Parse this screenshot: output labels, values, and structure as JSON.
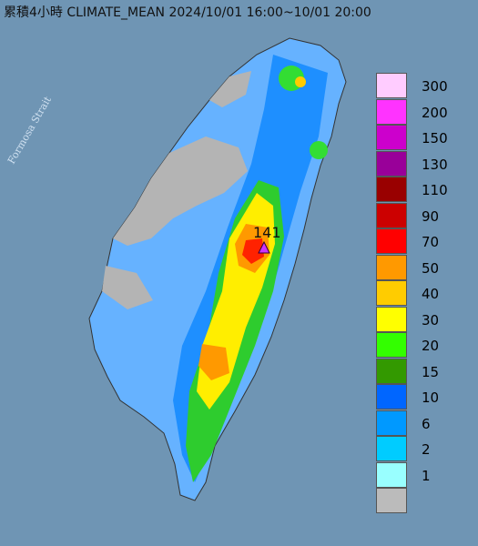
{
  "title": "累積4小時 CLIMATE_MEAN 2024/10/01 16:00~10/01 20:00",
  "strait_label": "Formosa Strait",
  "max_value": "141",
  "legend": [
    {
      "label": "300",
      "color": "#ffccff"
    },
    {
      "label": "200",
      "color": "#ff33ff"
    },
    {
      "label": "150",
      "color": "#cc00cc"
    },
    {
      "label": "130",
      "color": "#990099"
    },
    {
      "label": "110",
      "color": "#990000"
    },
    {
      "label": "90",
      "color": "#cc0000"
    },
    {
      "label": "70",
      "color": "#ff0000"
    },
    {
      "label": "50",
      "color": "#ff9900"
    },
    {
      "label": "40",
      "color": "#ffcc00"
    },
    {
      "label": "30",
      "color": "#ffff00"
    },
    {
      "label": "20",
      "color": "#33ff00"
    },
    {
      "label": "15",
      "color": "#339900"
    },
    {
      "label": "10",
      "color": "#0066ff"
    },
    {
      "label": "6",
      "color": "#0099ff"
    },
    {
      "label": "2",
      "color": "#00ccff"
    },
    {
      "label": "1",
      "color": "#99ffff"
    },
    {
      "label": "",
      "color": "#bbbbbb"
    }
  ]
}
